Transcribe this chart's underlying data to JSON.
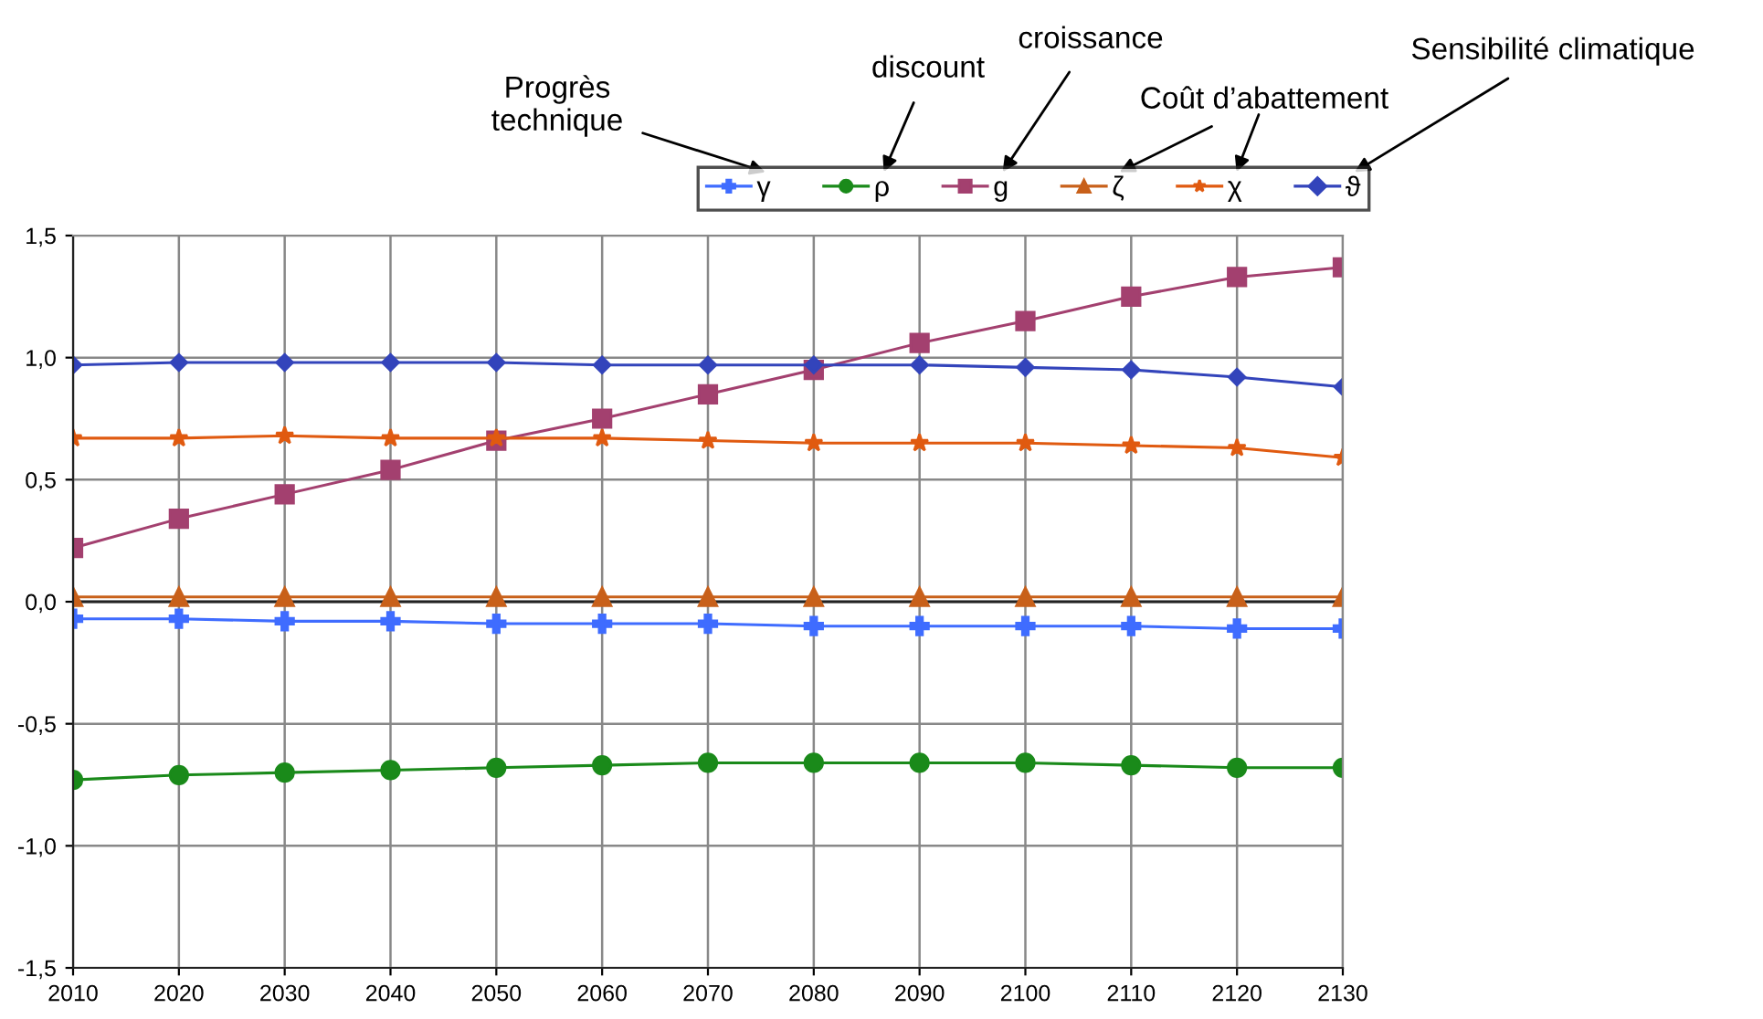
{
  "chart_data": {
    "type": "line",
    "x": [
      2010,
      2020,
      2030,
      2040,
      2050,
      2060,
      2070,
      2080,
      2090,
      2100,
      2110,
      2120,
      2130
    ],
    "series": [
      {
        "name": "γ",
        "color": "#3f6cff",
        "marker": "cross",
        "values": [
          -0.07,
          -0.07,
          -0.08,
          -0.08,
          -0.09,
          -0.09,
          -0.09,
          -0.1,
          -0.1,
          -0.1,
          -0.1,
          -0.11,
          -0.11
        ]
      },
      {
        "name": "ρ",
        "color": "#1a8a1a",
        "marker": "circle",
        "values": [
          -0.73,
          -0.71,
          -0.7,
          -0.69,
          -0.68,
          -0.67,
          -0.66,
          -0.66,
          -0.66,
          -0.66,
          -0.67,
          -0.68,
          -0.68
        ]
      },
      {
        "name": "g",
        "color": "#a3406f",
        "marker": "square",
        "values": [
          0.22,
          0.34,
          0.44,
          0.54,
          0.66,
          0.75,
          0.85,
          0.95,
          1.06,
          1.15,
          1.25,
          1.33,
          1.37
        ]
      },
      {
        "name": "ζ",
        "color": "#c8601a",
        "marker": "triangle",
        "values": [
          0.02,
          0.02,
          0.02,
          0.02,
          0.02,
          0.02,
          0.02,
          0.02,
          0.02,
          0.02,
          0.02,
          0.02,
          0.02
        ]
      },
      {
        "name": "χ",
        "color": "#e05a10",
        "marker": "star",
        "values": [
          0.67,
          0.67,
          0.68,
          0.67,
          0.67,
          0.67,
          0.66,
          0.65,
          0.65,
          0.65,
          0.64,
          0.63,
          0.59
        ]
      },
      {
        "name": "ϑ",
        "color": "#3344bb",
        "marker": "diamond",
        "values": [
          0.97,
          0.98,
          0.98,
          0.98,
          0.98,
          0.97,
          0.97,
          0.97,
          0.97,
          0.96,
          0.95,
          0.92,
          0.88
        ]
      }
    ],
    "xlim": [
      2010,
      2130
    ],
    "xticks": [
      2010,
      2020,
      2030,
      2040,
      2050,
      2060,
      2070,
      2080,
      2090,
      2100,
      2110,
      2120,
      2130
    ],
    "ylim": [
      -1.5,
      1.5
    ],
    "yticks": [
      {
        "value": -1.5,
        "label": "-1,5"
      },
      {
        "value": -1.0,
        "label": "-1,0"
      },
      {
        "value": -0.5,
        "label": "-0,5"
      },
      {
        "value": 0,
        "label": "0,0"
      },
      {
        "value": 0.5,
        "label": "0,5"
      },
      {
        "value": 1.0,
        "label": "1,0"
      },
      {
        "value": 1.5,
        "label": "1,5"
      }
    ],
    "grid": true,
    "legend": "top right",
    "line_style": "solid",
    "annotations": [
      "Progrès\ntechnique",
      "discount",
      "croissance",
      "Coût d’abattement",
      "Sensibilité climatique"
    ]
  }
}
